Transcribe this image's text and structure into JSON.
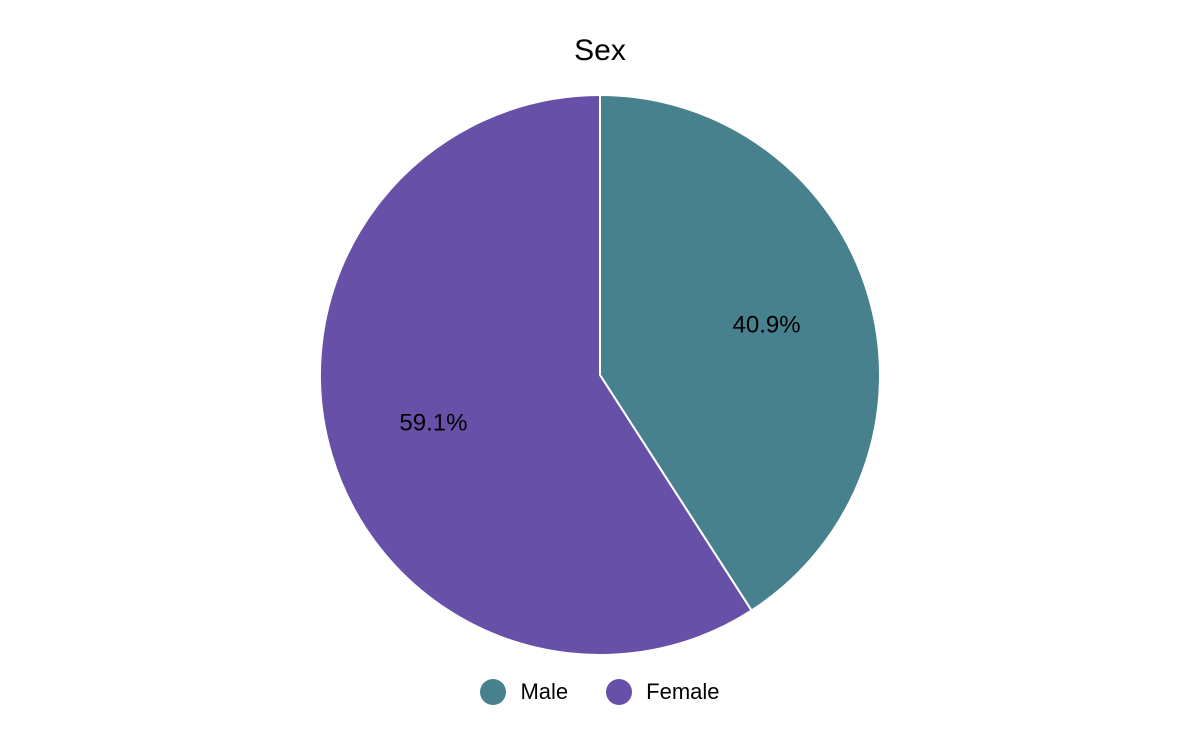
{
  "chart_data": {
    "type": "pie",
    "title": "Sex",
    "legend_position": "bottom",
    "series": [
      {
        "name": "Male",
        "value": 40.9,
        "label": "40.9%",
        "color": "#47818E"
      },
      {
        "name": "Female",
        "value": 59.1,
        "label": "59.1%",
        "color": "#6750A8"
      }
    ]
  }
}
